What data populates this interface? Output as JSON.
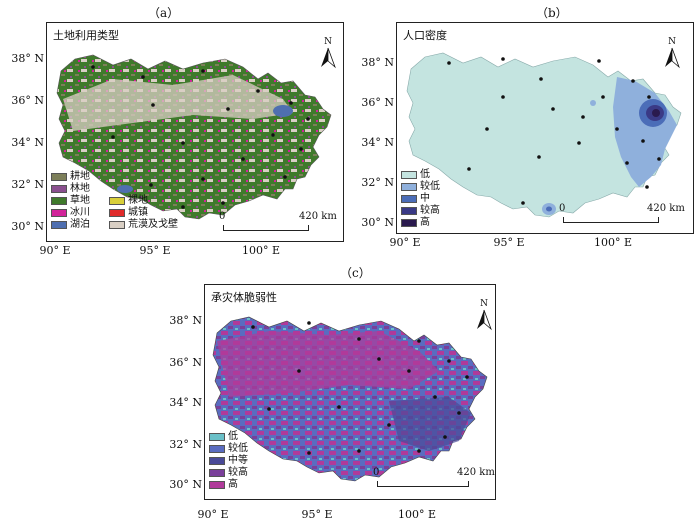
{
  "panels": [
    {
      "label": "（a）",
      "title": "土地利用类型",
      "legend_col1": [
        {
          "label": "耕地",
          "color": "#7d7f5a"
        },
        {
          "label": "林地",
          "color": "#8a4f8f"
        },
        {
          "label": "草地",
          "color": "#3f7a2b"
        },
        {
          "label": "冰川",
          "color": "#d2249a"
        },
        {
          "label": "湖泊",
          "color": "#4f6fb0"
        }
      ],
      "legend_col2": [
        {
          "label": "裸地",
          "color": "#d8cf3a"
        },
        {
          "label": "城镇",
          "color": "#e02a2a"
        },
        {
          "label": "荒漠及戈壁",
          "color": "#d9cfc4"
        }
      ]
    },
    {
      "label": "（b）",
      "title": "人口密度",
      "legend": [
        {
          "label": "低",
          "color": "#c4e4e0"
        },
        {
          "label": "较低",
          "color": "#8fb0dc"
        },
        {
          "label": "中",
          "color": "#4b6db8"
        },
        {
          "label": "较高",
          "color": "#3a3a86"
        },
        {
          "label": "高",
          "color": "#2a1a4e"
        }
      ]
    },
    {
      "label": "（c）",
      "title": "承灾体脆弱性",
      "legend": [
        {
          "label": "低",
          "color": "#6ac0c8"
        },
        {
          "label": "较低",
          "color": "#5a6cc0"
        },
        {
          "label": "中等",
          "color": "#4a4a98"
        },
        {
          "label": "较高",
          "color": "#7a3f9a"
        },
        {
          "label": "高",
          "color": "#b03a9a"
        }
      ]
    }
  ],
  "lat_labels": [
    "38° N",
    "36° N",
    "34° N",
    "32° N",
    "30° N"
  ],
  "lon_labels": [
    "90° E",
    "95° E",
    "100° E"
  ],
  "scale": {
    "zero": "0",
    "dist": "420 km"
  },
  "north": "N"
}
